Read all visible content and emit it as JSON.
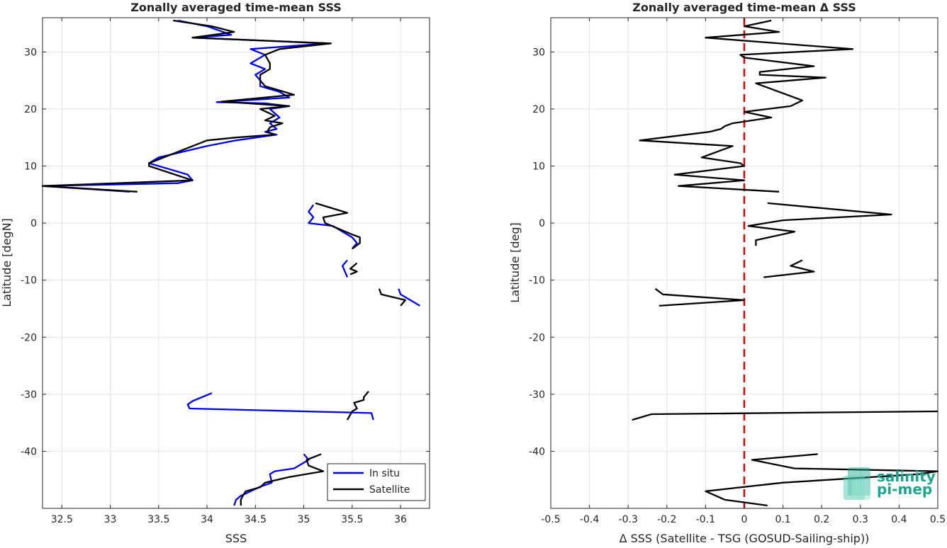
{
  "watermark": {
    "line1": "salinity",
    "line2": "pi-mep",
    "color": "#1ea58e"
  },
  "chart_data": [
    {
      "type": "line",
      "title": "Zonally averaged time-mean SSS",
      "xlabel": "SSS",
      "ylabel": "Latitude [degN]",
      "xlim": [
        32.3,
        36.3
      ],
      "ylim": [
        -50,
        36
      ],
      "xticks": [
        32.5,
        33,
        33.5,
        34,
        34.5,
        35,
        35.5,
        36
      ],
      "xtick_labels": [
        "32.5",
        "33",
        "33.5",
        "34",
        "34.5",
        "35",
        "35.5",
        "36"
      ],
      "yticks": [
        -40,
        -30,
        -20,
        -10,
        0,
        10,
        20,
        30
      ],
      "ytick_labels": [
        "-40",
        "-30",
        "-20",
        "-10",
        "0",
        "10",
        "20",
        "30"
      ],
      "grid": true,
      "legend": {
        "placement": "bottom-right",
        "entries": [
          "In situ",
          "Satellite"
        ]
      },
      "series": [
        {
          "name": "In situ",
          "color": "#0000e6",
          "segments": [
            [
              [
                33.7,
                35.5
              ],
              [
                34.0,
                34.5
              ],
              [
                34.25,
                33.0
              ],
              [
                33.85,
                32.5
              ],
              [
                35.25,
                31.5
              ],
              [
                34.45,
                30.5
              ],
              [
                34.6,
                29.5
              ],
              [
                34.45,
                28.0
              ],
              [
                34.6,
                27.0
              ],
              [
                34.5,
                26.0
              ],
              [
                34.55,
                25.0
              ],
              [
                34.55,
                24.0
              ],
              [
                34.75,
                23.0
              ],
              [
                34.85,
                22.0
              ],
              [
                34.1,
                21.2
              ],
              [
                34.6,
                21.0
              ],
              [
                34.85,
                20.5
              ],
              [
                34.65,
                20.0
              ],
              [
                34.75,
                18.5
              ],
              [
                34.65,
                17.5
              ],
              [
                34.72,
                16.5
              ],
              [
                34.6,
                16.0
              ],
              [
                34.72,
                15.5
              ],
              [
                34.3,
                14.5
              ],
              [
                34.0,
                13.5
              ],
              [
                33.75,
                12.5
              ],
              [
                33.5,
                11.5
              ],
              [
                33.4,
                10.5
              ],
              [
                33.8,
                8.5
              ],
              [
                33.85,
                7.5
              ],
              [
                33.7,
                7.0
              ],
              [
                32.3,
                6.5
              ],
              [
                33.2,
                5.5
              ]
            ],
            [
              [
                35.1,
                3.2
              ],
              [
                35.05,
                2.0
              ],
              [
                35.1,
                1.0
              ],
              [
                35.05,
                0.0
              ],
              [
                35.3,
                -0.5
              ],
              [
                35.5,
                -2.5
              ],
              [
                35.55,
                -3.5
              ],
              [
                35.5,
                -4.5
              ]
            ],
            [
              [
                35.45,
                -6.5
              ],
              [
                35.4,
                -7.5
              ],
              [
                35.45,
                -9.5
              ]
            ],
            [
              [
                35.98,
                -11.5
              ],
              [
                36.0,
                -12.5
              ],
              [
                36.2,
                -14.5
              ]
            ],
            [
              [
                34.05,
                -29.8
              ],
              [
                33.85,
                -31.2
              ],
              [
                33.8,
                -31.8
              ],
              [
                33.82,
                -32.5
              ],
              [
                35.7,
                -33.3
              ],
              [
                35.72,
                -34.5
              ]
            ],
            [
              [
                35.0,
                -40.5
              ],
              [
                35.05,
                -41.5
              ],
              [
                34.9,
                -43.0
              ],
              [
                34.7,
                -43.5
              ],
              [
                34.65,
                -44.0
              ],
              [
                34.67,
                -45.5
              ],
              [
                34.55,
                -46.2
              ],
              [
                34.45,
                -47.0
              ],
              [
                34.35,
                -47.8
              ],
              [
                34.3,
                -48.5
              ],
              [
                34.28,
                -49.5
              ]
            ]
          ]
        },
        {
          "name": "Satellite",
          "color": "#000000",
          "segments": [
            [
              [
                33.65,
                35.5
              ],
              [
                34.05,
                34.5
              ],
              [
                34.28,
                33.5
              ],
              [
                33.85,
                32.5
              ],
              [
                35.28,
                31.5
              ],
              [
                34.75,
                30.5
              ],
              [
                34.6,
                29.5
              ],
              [
                34.65,
                28.0
              ],
              [
                34.65,
                27.0
              ],
              [
                34.55,
                26.0
              ],
              [
                34.55,
                25.0
              ],
              [
                34.6,
                24.0
              ],
              [
                34.9,
                22.5
              ],
              [
                34.15,
                21.3
              ],
              [
                34.85,
                20.5
              ],
              [
                34.55,
                20.0
              ],
              [
                34.7,
                18.8
              ],
              [
                34.6,
                18.0
              ],
              [
                34.78,
                17.5
              ],
              [
                34.65,
                16.8
              ],
              [
                34.62,
                16.0
              ],
              [
                34.7,
                15.5
              ],
              [
                34.3,
                15.0
              ],
              [
                34.0,
                14.5
              ],
              [
                33.7,
                12.5
              ],
              [
                33.4,
                10.5
              ],
              [
                33.4,
                10.0
              ],
              [
                33.85,
                7.5
              ],
              [
                32.3,
                6.5
              ],
              [
                33.28,
                5.5
              ]
            ],
            [
              [
                35.12,
                3.5
              ],
              [
                35.45,
                1.8
              ],
              [
                35.2,
                1.0
              ],
              [
                35.22,
                0.0
              ],
              [
                35.5,
                -2.0
              ],
              [
                35.58,
                -2.5
              ],
              [
                35.58,
                -3.5
              ],
              [
                35.5,
                -4.5
              ]
            ],
            [
              [
                35.55,
                -7.0
              ],
              [
                35.48,
                -8.0
              ],
              [
                35.55,
                -8.5
              ],
              [
                35.48,
                -9.0
              ]
            ],
            [
              [
                35.78,
                -11.5
              ],
              [
                35.8,
                -12.5
              ],
              [
                36.05,
                -13.5
              ],
              [
                36.0,
                -14.5
              ]
            ],
            [
              [
                35.67,
                -29.5
              ],
              [
                35.62,
                -30.5
              ],
              [
                35.62,
                -31.0
              ],
              [
                35.52,
                -31.5
              ],
              [
                35.55,
                -32.5
              ],
              [
                35.5,
                -33.0
              ],
              [
                35.45,
                -34.5
              ]
            ],
            [
              [
                35.18,
                -40.5
              ],
              [
                35.03,
                -41.5
              ],
              [
                35.05,
                -42.5
              ],
              [
                35.2,
                -43.5
              ],
              [
                34.85,
                -44.5
              ],
              [
                34.6,
                -45.5
              ],
              [
                34.55,
                -46.3
              ],
              [
                34.4,
                -47.0
              ],
              [
                34.37,
                -47.8
              ],
              [
                34.35,
                -48.5
              ],
              [
                34.35,
                -49.5
              ]
            ]
          ]
        }
      ]
    },
    {
      "type": "line",
      "title": "Zonally averaged time-mean Δ SSS",
      "xlabel": "Δ SSS (Satellite - TSG (GOSUD-Sailing-ship))",
      "ylabel": "Latitude [deg]",
      "xlim": [
        -0.5,
        0.5
      ],
      "ylim": [
        -50,
        36
      ],
      "xticks": [
        -0.5,
        -0.4,
        -0.3,
        -0.2,
        -0.1,
        0,
        0.1,
        0.2,
        0.3,
        0.4,
        0.5
      ],
      "xtick_labels": [
        "-0.5",
        "-0.4",
        "-0.3",
        "-0.2",
        "-0.1",
        "0",
        "0.1",
        "0.2",
        "0.3",
        "0.4",
        "0.5"
      ],
      "yticks": [
        -40,
        -30,
        -20,
        -10,
        0,
        10,
        20,
        30
      ],
      "ytick_labels": [
        "-40",
        "-30",
        "-20",
        "-10",
        "0",
        "10",
        "20",
        "30"
      ],
      "grid": true,
      "reference_line": {
        "x": 0,
        "color": "#e00000",
        "style": "dashed"
      },
      "series": [
        {
          "color": "#000000",
          "segments": [
            [
              [
                0.07,
                35.5
              ],
              [
                0.0,
                34.5
              ],
              [
                0.09,
                33.5
              ],
              [
                -0.1,
                32.5
              ],
              [
                0.28,
                30.5
              ],
              [
                -0.01,
                29.5
              ],
              [
                0.0,
                29.0
              ],
              [
                0.18,
                27.5
              ],
              [
                0.04,
                26.5
              ],
              [
                0.04,
                26.0
              ],
              [
                0.21,
                25.5
              ],
              [
                0.03,
                24.5
              ],
              [
                0.07,
                23.5
              ],
              [
                0.15,
                21.5
              ],
              [
                0.12,
                20.5
              ],
              [
                0.0,
                19.5
              ],
              [
                0.07,
                18.5
              ],
              [
                -0.03,
                17.5
              ],
              [
                -0.05,
                17.0
              ],
              [
                -0.06,
                16.5
              ],
              [
                -0.09,
                16.0
              ],
              [
                -0.27,
                14.5
              ],
              [
                -0.03,
                13.5
              ],
              [
                -0.05,
                13.0
              ],
              [
                -0.11,
                11.5
              ],
              [
                -0.01,
                10.5
              ],
              [
                0.0,
                10.0
              ],
              [
                -0.18,
                8.5
              ],
              [
                0.0,
                7.5
              ],
              [
                -0.17,
                6.5
              ],
              [
                0.09,
                5.5
              ]
            ],
            [
              [
                0.06,
                3.5
              ],
              [
                0.38,
                1.5
              ],
              [
                0.1,
                0.5
              ],
              [
                0.01,
                -0.5
              ],
              [
                0.13,
                -1.5
              ],
              [
                0.03,
                -3.0
              ],
              [
                0.03,
                -4.0
              ]
            ],
            [
              [
                0.15,
                -6.5
              ],
              [
                0.12,
                -7.5
              ],
              [
                0.18,
                -8.5
              ],
              [
                0.05,
                -9.5
              ]
            ],
            [
              [
                -0.23,
                -11.5
              ],
              [
                -0.21,
                -12.5
              ],
              [
                0.0,
                -13.5
              ],
              [
                -0.22,
                -14.5
              ]
            ],
            [
              [
                -0.29,
                -34.5
              ],
              [
                -0.24,
                -33.5
              ],
              [
                0.5,
                -33.0
              ]
            ],
            [
              [
                0.19,
                -40.5
              ],
              [
                0.02,
                -41.5
              ],
              [
                0.13,
                -43.0
              ],
              [
                0.5,
                -43.5
              ],
              [
                0.45,
                -44.0
              ],
              [
                0.1,
                -45.5
              ],
              [
                -0.1,
                -47.0
              ],
              [
                -0.05,
                -48.5
              ],
              [
                0.06,
                -49.5
              ]
            ]
          ]
        }
      ]
    }
  ]
}
